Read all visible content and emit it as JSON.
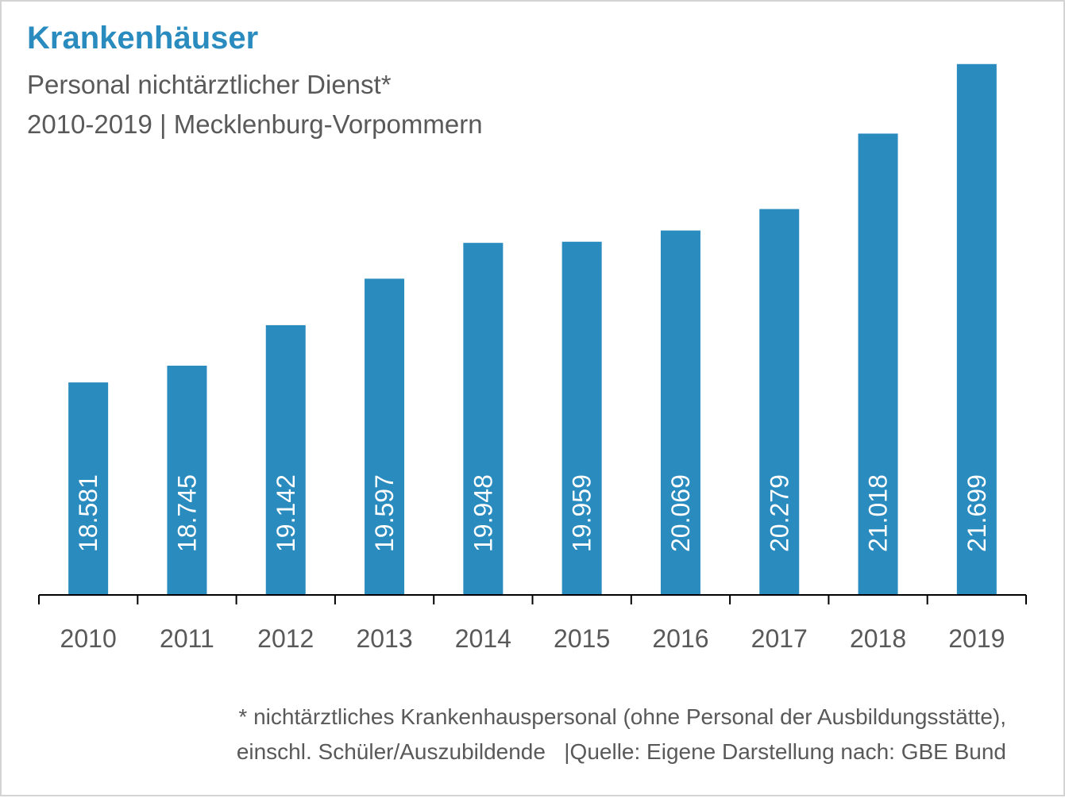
{
  "chart_data": {
    "type": "bar",
    "title": "Krankenhäuser",
    "subtitle": [
      "Personal nichtärztlicher Dienst*",
      "2010-2019 | Mecklenburg-Vorpommern"
    ],
    "categories": [
      "2010",
      "2011",
      "2012",
      "2013",
      "2014",
      "2015",
      "2016",
      "2017",
      "2018",
      "2019"
    ],
    "values": [
      18581,
      18745,
      19142,
      19597,
      19948,
      19959,
      20069,
      20279,
      21018,
      21699
    ],
    "data_labels": [
      "18.581",
      "18.745",
      "19.142",
      "19.597",
      "19.948",
      "19.959",
      "20.069",
      "20.279",
      "21.018",
      "21.699"
    ],
    "xlabel": "",
    "ylabel": "",
    "ylim": [
      16500,
      22000
    ],
    "grid": false,
    "legend": "none",
    "bar_color": "#2a8bbf",
    "title_color": "#2a8bbf"
  },
  "footnote": [
    "* nichtärztliches Krankenhauspersonal (ohne Personal der Ausbildungsstätte),",
    "einschl. Schüler/Auszubildende   |Quelle: Eigene Darstellung nach: GBE Bund"
  ]
}
